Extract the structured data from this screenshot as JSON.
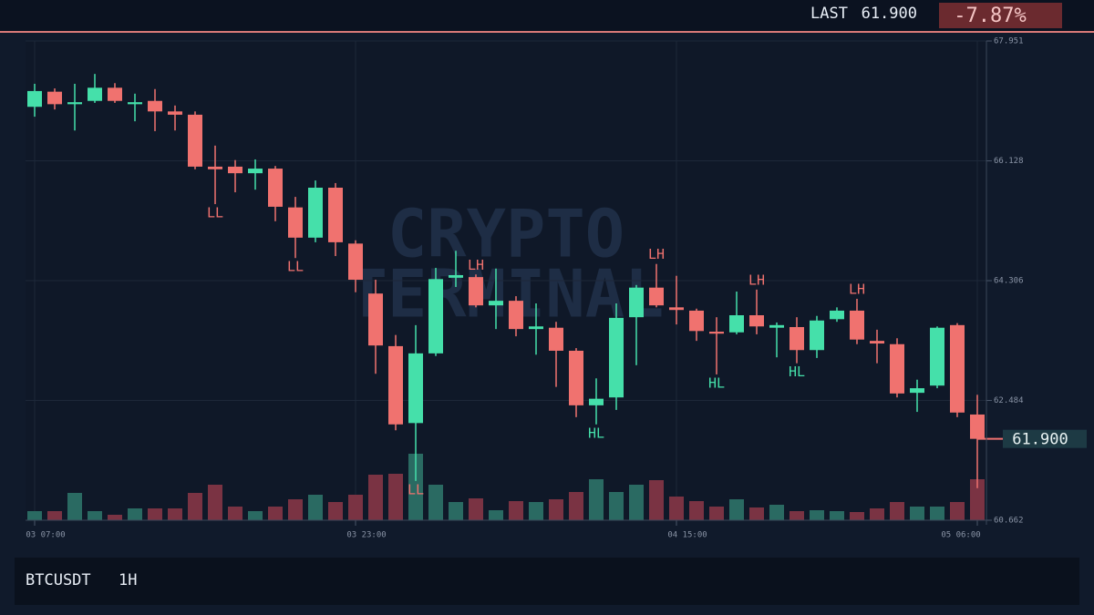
{
  "header": {
    "last_label": "LAST",
    "change": "-7.87%"
  },
  "footer": {
    "symbol": "BTCUSDT",
    "interval": "1H"
  },
  "chart_data": {
    "type": "candlestick",
    "watermark": [
      "CRYPTO",
      "TERMINAL"
    ],
    "categories": [
      "03 07:00",
      null,
      null,
      null,
      null,
      null,
      null,
      null,
      null,
      null,
      null,
      null,
      null,
      null,
      null,
      null,
      "03 23:00",
      null,
      null,
      null,
      null,
      null,
      null,
      null,
      null,
      null,
      null,
      null,
      null,
      null,
      null,
      null,
      "04 15:00",
      null,
      null,
      null,
      null,
      null,
      null,
      null,
      null,
      null,
      null,
      null,
      null,
      null,
      null,
      "05 06:00"
    ],
    "open": [
      66.95,
      67.18,
      66.99,
      67.04,
      67.24,
      66.99,
      67.04,
      66.88,
      66.83,
      66.04,
      66.04,
      65.94,
      66.01,
      65.42,
      64.96,
      65.72,
      64.87,
      64.11,
      63.31,
      62.14,
      63.2,
      64.35,
      64.36,
      63.93,
      64.0,
      63.57,
      63.59,
      63.24,
      62.41,
      62.53,
      63.75,
      64.2,
      63.9,
      63.85,
      63.53,
      63.52,
      63.78,
      63.59,
      63.6,
      63.25,
      63.72,
      63.85,
      63.39,
      63.34,
      62.6,
      62.71,
      63.63,
      62.27
    ],
    "high": [
      67.3,
      67.23,
      67.3,
      67.45,
      67.31,
      67.15,
      67.22,
      66.97,
      66.88,
      66.36,
      66.14,
      66.15,
      66.05,
      65.58,
      65.83,
      65.79,
      64.92,
      64.32,
      63.48,
      63.63,
      64.5,
      64.76,
      64.4,
      64.49,
      64.07,
      63.96,
      63.68,
      63.28,
      62.82,
      63.96,
      64.24,
      64.56,
      64.38,
      63.88,
      63.75,
      64.14,
      64.17,
      63.67,
      63.75,
      63.77,
      63.9,
      64.03,
      63.56,
      63.43,
      62.8,
      63.61,
      63.66,
      62.57
    ],
    "low": [
      66.8,
      66.91,
      66.59,
      67.01,
      67.01,
      66.73,
      66.58,
      66.59,
      66.0,
      65.47,
      65.65,
      65.69,
      65.21,
      64.65,
      64.89,
      64.68,
      64.13,
      62.89,
      62.03,
      61.26,
      63.16,
      64.21,
      63.9,
      63.57,
      63.46,
      63.18,
      62.69,
      62.23,
      62.12,
      62.34,
      63.02,
      63.9,
      63.64,
      63.39,
      62.88,
      63.49,
      63.49,
      63.14,
      63.05,
      63.13,
      63.68,
      63.34,
      63.05,
      62.53,
      62.31,
      62.67,
      62.23,
      61.15
    ],
    "close": [
      67.19,
      66.99,
      67.02,
      67.24,
      67.04,
      67.02,
      66.88,
      66.83,
      66.04,
      66.0,
      65.94,
      66.01,
      65.43,
      64.96,
      65.72,
      64.89,
      64.32,
      63.32,
      62.12,
      63.2,
      64.33,
      64.39,
      63.93,
      64.0,
      63.57,
      63.61,
      63.24,
      62.41,
      62.51,
      63.74,
      64.2,
      63.93,
      63.86,
      63.54,
      63.5,
      63.78,
      63.61,
      63.63,
      63.25,
      63.7,
      63.85,
      63.41,
      63.35,
      62.59,
      62.67,
      63.59,
      62.3,
      61.9
    ],
    "volume": [
      10,
      10,
      30,
      10,
      6,
      13,
      13,
      13,
      30,
      39,
      15,
      10,
      15,
      23,
      28,
      20,
      28,
      50,
      51,
      73,
      39,
      20,
      24,
      11,
      21,
      20,
      23,
      31,
      45,
      31,
      39,
      44,
      26,
      21,
      15,
      23,
      14,
      17,
      10,
      11,
      10,
      9,
      13,
      20,
      15,
      15,
      20,
      45
    ],
    "up_color": "#45e0aa",
    "down_color": "#f0726f",
    "up_volume_color": "#2a6a62",
    "down_volume_color": "#7a3343",
    "ylim": [
      60.662,
      67.951
    ],
    "yticks": [
      60.662,
      62.484,
      64.306,
      66.128,
      67.951
    ],
    "last_price": {
      "value": 61.9,
      "label": "61.900"
    },
    "annotations": [
      {
        "text": "LL",
        "index": 9,
        "kind": "low"
      },
      {
        "text": "LL",
        "index": 13,
        "kind": "low"
      },
      {
        "text": "LL",
        "index": 19,
        "kind": "low"
      },
      {
        "text": "LH",
        "index": 22,
        "kind": "high"
      },
      {
        "text": "HL",
        "index": 28,
        "kind": "low"
      },
      {
        "text": "LH",
        "index": 31,
        "kind": "high"
      },
      {
        "text": "HL",
        "index": 34,
        "kind": "low"
      },
      {
        "text": "LH",
        "index": 36,
        "kind": "high"
      },
      {
        "text": "HL",
        "index": 38,
        "kind": "low"
      },
      {
        "text": "LH",
        "index": 41,
        "kind": "high"
      }
    ]
  }
}
